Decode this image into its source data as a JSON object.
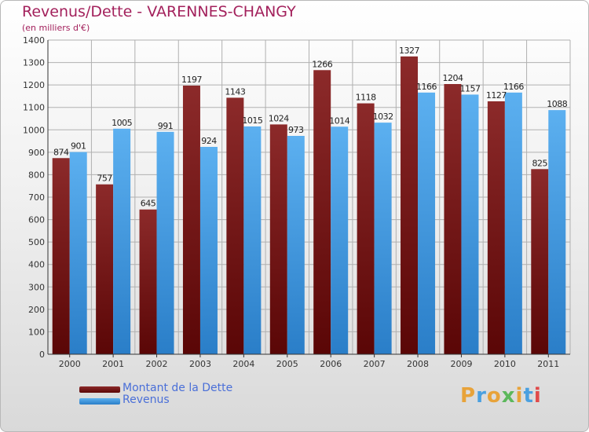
{
  "title": "Revenus/Dette - VARENNES-CHANGY",
  "subtitle": "(en milliers d'€)",
  "legend": {
    "debt_label": "Montant de la Dette",
    "revenue_label": "Revenus"
  },
  "logo": {
    "letters": [
      "P",
      "r",
      "o",
      "x",
      "i",
      "t",
      "i"
    ],
    "colors": [
      "#e8a33a",
      "#4aa0e0",
      "#e8a33a",
      "#5cb85c",
      "#e8a33a",
      "#4aa0e0",
      "#e04a4a"
    ]
  },
  "colors": {
    "debt": "#7a1a1a",
    "revenue": "#4ea4e8",
    "title": "#a3215c",
    "grid": "#b0b0b0"
  },
  "chart_data": {
    "type": "bar",
    "title": "Revenus/Dette - VARENNES-CHANGY",
    "ylabel": "(en milliers d'€)",
    "categories": [
      "2000",
      "2001",
      "2002",
      "2003",
      "2004",
      "2005",
      "2006",
      "2007",
      "2008",
      "2009",
      "2010",
      "2011"
    ],
    "series": [
      {
        "name": "Montant de la Dette",
        "values": [
          874,
          757,
          645,
          1197,
          1143,
          1024,
          1266,
          1118,
          1327,
          1204,
          1127,
          825
        ]
      },
      {
        "name": "Revenus",
        "values": [
          901,
          1005,
          991,
          924,
          1015,
          973,
          1014,
          1032,
          1166,
          1157,
          1166,
          1088
        ]
      }
    ],
    "data_labels": [
      [
        "874",
        "757",
        "645",
        "1197",
        "1143",
        "1024",
        "1266",
        "1118",
        "1327",
        "1204",
        "1127",
        "825"
      ],
      [
        "901",
        "1005",
        "991",
        "924",
        "1015",
        "973",
        "1014",
        "1032",
        "1166",
        "1157",
        "1166",
        "1088"
      ]
    ],
    "ylim": [
      0,
      1400
    ],
    "yticks": [
      0,
      100,
      200,
      300,
      400,
      500,
      600,
      700,
      800,
      900,
      1000,
      1100,
      1200,
      1300,
      1400
    ],
    "grid": true,
    "legend_position": "bottom-left"
  }
}
